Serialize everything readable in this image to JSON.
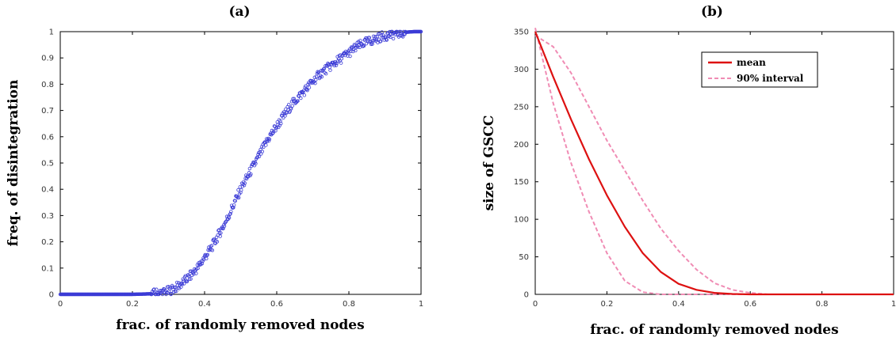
{
  "chart_data": [
    {
      "type": "scatter",
      "title": "(a)",
      "xlabel": "frac. of randomly removed nodes",
      "ylabel": "freq. of disintegration",
      "xlim": [
        0,
        1
      ],
      "ylim": [
        0,
        1
      ],
      "xticks": [
        "0",
        "0.2",
        "0.4",
        "0.6",
        "0.8",
        "1"
      ],
      "yticks": [
        "0",
        "0.1",
        "0.2",
        "0.3",
        "0.4",
        "0.5",
        "0.6",
        "0.7",
        "0.8",
        "0.9",
        "1"
      ],
      "grid": false,
      "color": "#3b3bd6",
      "series": [
        {
          "x": [
            0.0,
            0.05,
            0.1,
            0.15,
            0.2,
            0.25,
            0.28,
            0.3,
            0.32,
            0.34,
            0.36,
            0.38,
            0.4,
            0.42,
            0.44,
            0.46,
            0.48,
            0.5,
            0.52,
            0.54,
            0.56,
            0.58,
            0.6,
            0.62,
            0.64,
            0.66,
            0.68,
            0.7,
            0.72,
            0.74,
            0.76,
            0.78,
            0.8,
            0.82,
            0.84,
            0.86,
            0.88,
            0.9,
            0.92,
            0.94,
            0.96,
            0.98,
            1.0
          ],
          "values": [
            0.0,
            0.0,
            0.0,
            0.0,
            0.0,
            0.002,
            0.006,
            0.012,
            0.025,
            0.045,
            0.07,
            0.1,
            0.14,
            0.18,
            0.23,
            0.28,
            0.34,
            0.4,
            0.45,
            0.5,
            0.55,
            0.6,
            0.64,
            0.68,
            0.72,
            0.75,
            0.78,
            0.81,
            0.84,
            0.86,
            0.88,
            0.9,
            0.92,
            0.94,
            0.955,
            0.965,
            0.975,
            0.985,
            0.99,
            0.995,
            0.998,
            1.0,
            1.0
          ]
        }
      ]
    },
    {
      "type": "line",
      "title": "(b)",
      "xlabel": "frac. of randomly removed nodes",
      "ylabel": "size of GSCC",
      "xlim": [
        0,
        1
      ],
      "ylim": [
        0,
        350
      ],
      "xticks": [
        "0",
        "0.2",
        "0.4",
        "0.6",
        "0.8",
        "1"
      ],
      "yticks": [
        "0",
        "50",
        "100",
        "150",
        "200",
        "250",
        "300",
        "350"
      ],
      "grid": false,
      "legend_position": "top-right",
      "x": [
        0.0,
        0.05,
        0.1,
        0.15,
        0.2,
        0.25,
        0.3,
        0.35,
        0.4,
        0.45,
        0.5,
        0.55,
        0.6,
        0.65,
        0.7,
        0.8,
        0.9,
        1.0
      ],
      "series": [
        {
          "name": "mean",
          "color": "#dd1111",
          "dash": "solid",
          "values": [
            350,
            290,
            233,
            180,
            132,
            90,
            55,
            30,
            14,
            6,
            2,
            0.5,
            0,
            0,
            0,
            0,
            0,
            0
          ]
        },
        {
          "name": "90% interval",
          "color": "#f08cb4",
          "dash": "dashed",
          "values": [
            345,
            330,
            295,
            250,
            205,
            165,
            125,
            88,
            58,
            33,
            15,
            6,
            2,
            0,
            0,
            0,
            0,
            0
          ]
        },
        {
          "name": "",
          "color": "#f08cb4",
          "dash": "dashed",
          "values": [
            355,
            255,
            175,
            110,
            55,
            18,
            3,
            0,
            0,
            0,
            0,
            0,
            0,
            0,
            0,
            0,
            0,
            0
          ]
        }
      ]
    }
  ]
}
